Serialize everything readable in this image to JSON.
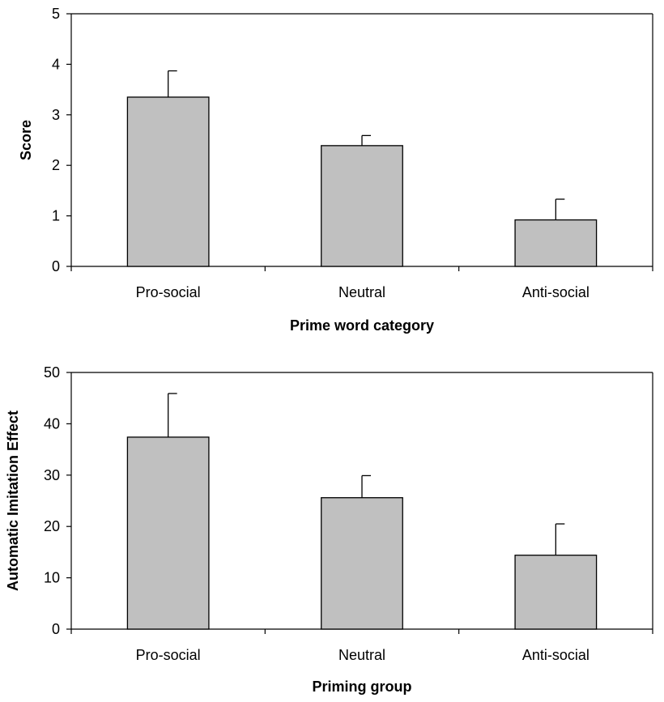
{
  "chart_data": [
    {
      "type": "bar",
      "categories": [
        "Pro-social",
        "Neutral",
        "Anti-social"
      ],
      "series": [
        {
          "values": [
            3.35,
            2.39,
            0.92
          ],
          "error": [
            0.52,
            0.2,
            0.41
          ]
        }
      ],
      "xlabel": "Prime word category",
      "ylabel": "Score",
      "ylim": [
        0,
        5
      ],
      "yticks": [
        0,
        1,
        2,
        3,
        4,
        5
      ],
      "grid": false,
      "bar_color": "#c0c0c0"
    },
    {
      "type": "bar",
      "categories": [
        "Pro-social",
        "Neutral",
        "Anti-social"
      ],
      "series": [
        {
          "values": [
            37.4,
            25.6,
            14.4
          ],
          "error": [
            8.5,
            4.3,
            6.1
          ]
        }
      ],
      "xlabel": "Priming group",
      "ylabel": "Automatic Imitation Effect",
      "ylim": [
        0,
        50
      ],
      "yticks": [
        0,
        10,
        20,
        30,
        40,
        50
      ],
      "grid": false,
      "bar_color": "#c0c0c0"
    }
  ]
}
